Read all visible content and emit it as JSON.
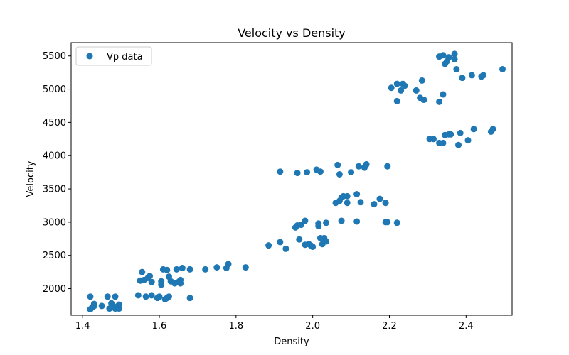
{
  "chart_data": {
    "type": "scatter",
    "title": "Velocity vs Density",
    "xlabel": "Density",
    "ylabel": "Velocity",
    "xlim": [
      1.37,
      2.52
    ],
    "ylim": [
      1600,
      5700
    ],
    "x_ticks": [
      1.4,
      1.6,
      1.8,
      2.0,
      2.2,
      2.4
    ],
    "x_tick_labels": [
      "1.4",
      "1.6",
      "1.8",
      "2.0",
      "2.2",
      "2.4"
    ],
    "y_ticks": [
      2000,
      2500,
      3000,
      3500,
      4000,
      4500,
      5000,
      5500
    ],
    "y_tick_labels": [
      "2000",
      "2500",
      "3000",
      "3500",
      "4000",
      "4500",
      "5000",
      "5500"
    ],
    "grid": false,
    "legend_position": "top-left",
    "series": [
      {
        "name": "Vp data",
        "color": "#1f77b4",
        "points": [
          [
            1.42,
            1880
          ],
          [
            1.42,
            1690
          ],
          [
            1.425,
            1720
          ],
          [
            1.43,
            1770
          ],
          [
            1.43,
            1740
          ],
          [
            1.45,
            1740
          ],
          [
            1.465,
            1880
          ],
          [
            1.47,
            1700
          ],
          [
            1.475,
            1780
          ],
          [
            1.48,
            1740
          ],
          [
            1.485,
            1880
          ],
          [
            1.485,
            1700
          ],
          [
            1.49,
            1720
          ],
          [
            1.495,
            1700
          ],
          [
            1.495,
            1760
          ],
          [
            1.545,
            1900
          ],
          [
            1.55,
            2120
          ],
          [
            1.555,
            2250
          ],
          [
            1.56,
            2130
          ],
          [
            1.565,
            1880
          ],
          [
            1.57,
            2160
          ],
          [
            1.575,
            2190
          ],
          [
            1.58,
            1900
          ],
          [
            1.58,
            2100
          ],
          [
            1.595,
            1860
          ],
          [
            1.6,
            1880
          ],
          [
            1.605,
            2060
          ],
          [
            1.605,
            2110
          ],
          [
            1.61,
            2290
          ],
          [
            1.615,
            1840
          ],
          [
            1.62,
            2280
          ],
          [
            1.62,
            1860
          ],
          [
            1.625,
            2180
          ],
          [
            1.625,
            1880
          ],
          [
            1.63,
            2110
          ],
          [
            1.64,
            2080
          ],
          [
            1.645,
            2290
          ],
          [
            1.65,
            2100
          ],
          [
            1.655,
            2080
          ],
          [
            1.655,
            2130
          ],
          [
            1.66,
            2310
          ],
          [
            1.68,
            2290
          ],
          [
            1.68,
            1860
          ],
          [
            1.72,
            2290
          ],
          [
            1.75,
            2320
          ],
          [
            1.775,
            2310
          ],
          [
            1.78,
            2370
          ],
          [
            1.825,
            2320
          ],
          [
            1.885,
            2650
          ],
          [
            1.915,
            2700
          ],
          [
            1.93,
            2600
          ],
          [
            1.955,
            2920
          ],
          [
            1.96,
            2950
          ],
          [
            1.965,
            2740
          ],
          [
            1.97,
            2960
          ],
          [
            1.98,
            2660
          ],
          [
            1.98,
            3020
          ],
          [
            1.99,
            2670
          ],
          [
            1.995,
            2650
          ],
          [
            2.0,
            2630
          ],
          [
            2.015,
            2940
          ],
          [
            2.015,
            2980
          ],
          [
            2.02,
            2760
          ],
          [
            2.025,
            2670
          ],
          [
            2.03,
            2760
          ],
          [
            2.035,
            2990
          ],
          [
            2.035,
            2710
          ],
          [
            2.06,
            3290
          ],
          [
            2.07,
            3320
          ],
          [
            2.075,
            3370
          ],
          [
            2.075,
            3020
          ],
          [
            2.08,
            3390
          ],
          [
            2.09,
            3290
          ],
          [
            2.09,
            3390
          ],
          [
            2.115,
            3010
          ],
          [
            2.115,
            3420
          ],
          [
            2.125,
            3300
          ],
          [
            2.16,
            3270
          ],
          [
            2.175,
            3350
          ],
          [
            2.19,
            3290
          ],
          [
            2.19,
            3000
          ],
          [
            2.195,
            3000
          ],
          [
            2.22,
            2990
          ],
          [
            1.915,
            3760
          ],
          [
            1.96,
            3740
          ],
          [
            1.985,
            3750
          ],
          [
            2.01,
            3790
          ],
          [
            2.02,
            3760
          ],
          [
            2.065,
            3860
          ],
          [
            2.07,
            3720
          ],
          [
            2.1,
            3750
          ],
          [
            2.12,
            3840
          ],
          [
            2.135,
            3820
          ],
          [
            2.14,
            3870
          ],
          [
            2.195,
            3840
          ],
          [
            2.205,
            5020
          ],
          [
            2.22,
            4820
          ],
          [
            2.22,
            5080
          ],
          [
            2.23,
            4980
          ],
          [
            2.235,
            5080
          ],
          [
            2.24,
            5050
          ],
          [
            2.27,
            4980
          ],
          [
            2.28,
            4870
          ],
          [
            2.285,
            5130
          ],
          [
            2.29,
            4840
          ],
          [
            2.33,
            4810
          ],
          [
            2.33,
            5490
          ],
          [
            2.34,
            5510
          ],
          [
            2.34,
            4920
          ],
          [
            2.345,
            5380
          ],
          [
            2.35,
            5420
          ],
          [
            2.355,
            5480
          ],
          [
            2.37,
            5530
          ],
          [
            2.37,
            5450
          ],
          [
            2.375,
            5300
          ],
          [
            2.39,
            5170
          ],
          [
            2.415,
            5210
          ],
          [
            2.44,
            5190
          ],
          [
            2.445,
            5210
          ],
          [
            2.495,
            5300
          ],
          [
            2.305,
            4250
          ],
          [
            2.315,
            4250
          ],
          [
            2.33,
            4190
          ],
          [
            2.34,
            4190
          ],
          [
            2.345,
            4310
          ],
          [
            2.355,
            4320
          ],
          [
            2.36,
            4320
          ],
          [
            2.38,
            4160
          ],
          [
            2.385,
            4340
          ],
          [
            2.405,
            4230
          ],
          [
            2.42,
            4400
          ],
          [
            2.465,
            4360
          ],
          [
            2.47,
            4400
          ]
        ]
      }
    ]
  }
}
